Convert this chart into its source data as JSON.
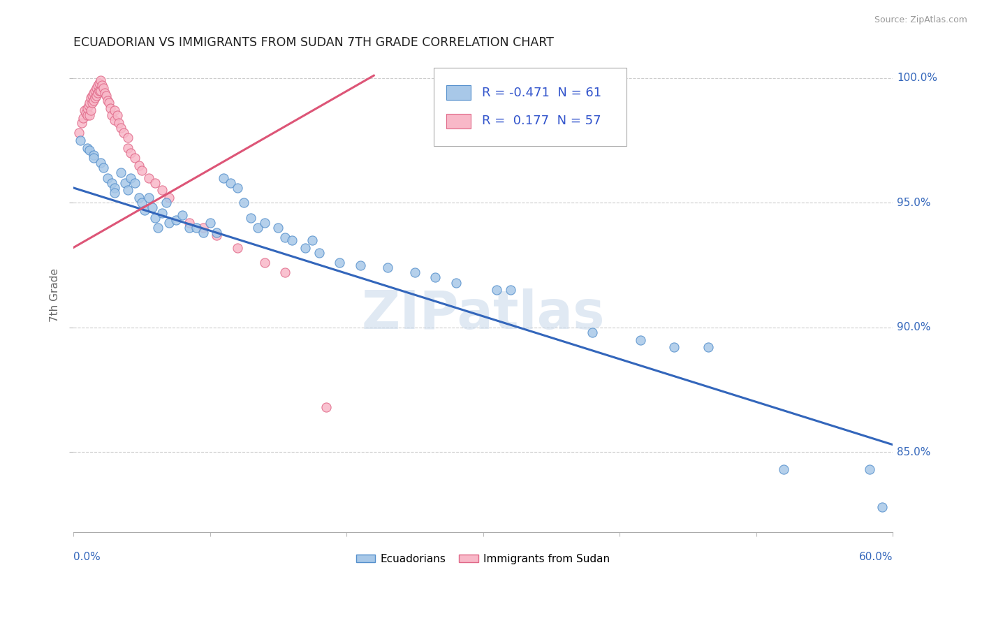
{
  "title": "ECUADORIAN VS IMMIGRANTS FROM SUDAN 7TH GRADE CORRELATION CHART",
  "source": "Source: ZipAtlas.com",
  "ylabel": "7th Grade",
  "xlim": [
    0.0,
    0.6
  ],
  "ylim": [
    0.818,
    1.008
  ],
  "xticks": [
    0.0,
    0.1,
    0.2,
    0.3,
    0.4,
    0.5,
    0.6
  ],
  "yticks": [
    0.85,
    0.9,
    0.95,
    1.0
  ],
  "yticklabels": [
    "85.0%",
    "90.0%",
    "95.0%",
    "100.0%"
  ],
  "blue_dot_color": "#a8c8e8",
  "blue_dot_edge": "#5590cc",
  "pink_dot_color": "#f8b8c8",
  "pink_dot_edge": "#e06888",
  "blue_line_color": "#3366bb",
  "pink_line_color": "#dd5577",
  "legend_R1": "-0.471",
  "legend_N1": "61",
  "legend_R2": "0.177",
  "legend_N2": "57",
  "legend_label1": "Ecuadorians",
  "legend_label2": "Immigrants from Sudan",
  "watermark": "ZIPatlas",
  "blue_line_x0": 0.0,
  "blue_line_y0": 0.956,
  "blue_line_x1": 0.6,
  "blue_line_y1": 0.853,
  "pink_line_x0": 0.0,
  "pink_line_x1": 0.22,
  "pink_line_y0": 0.932,
  "pink_line_y1": 1.001,
  "blue_x": [
    0.005,
    0.01,
    0.012,
    0.015,
    0.015,
    0.02,
    0.022,
    0.025,
    0.028,
    0.03,
    0.03,
    0.035,
    0.038,
    0.04,
    0.042,
    0.045,
    0.048,
    0.05,
    0.052,
    0.055,
    0.058,
    0.06,
    0.062,
    0.065,
    0.068,
    0.07,
    0.075,
    0.08,
    0.085,
    0.09,
    0.095,
    0.1,
    0.105,
    0.11,
    0.115,
    0.12,
    0.125,
    0.13,
    0.135,
    0.14,
    0.15,
    0.155,
    0.16,
    0.17,
    0.175,
    0.18,
    0.195,
    0.21,
    0.23,
    0.25,
    0.265,
    0.28,
    0.31,
    0.32,
    0.38,
    0.415,
    0.44,
    0.465,
    0.52,
    0.583,
    0.592
  ],
  "blue_y": [
    0.975,
    0.972,
    0.971,
    0.969,
    0.968,
    0.966,
    0.964,
    0.96,
    0.958,
    0.956,
    0.954,
    0.962,
    0.958,
    0.955,
    0.96,
    0.958,
    0.952,
    0.95,
    0.947,
    0.952,
    0.948,
    0.944,
    0.94,
    0.946,
    0.95,
    0.942,
    0.943,
    0.945,
    0.94,
    0.94,
    0.938,
    0.942,
    0.938,
    0.96,
    0.958,
    0.956,
    0.95,
    0.944,
    0.94,
    0.942,
    0.94,
    0.936,
    0.935,
    0.932,
    0.935,
    0.93,
    0.926,
    0.925,
    0.924,
    0.922,
    0.92,
    0.918,
    0.915,
    0.915,
    0.898,
    0.895,
    0.892,
    0.892,
    0.843,
    0.843,
    0.828
  ],
  "pink_x": [
    0.004,
    0.006,
    0.007,
    0.008,
    0.009,
    0.01,
    0.01,
    0.011,
    0.012,
    0.012,
    0.013,
    0.013,
    0.014,
    0.014,
    0.015,
    0.015,
    0.016,
    0.016,
    0.017,
    0.017,
    0.018,
    0.018,
    0.019,
    0.019,
    0.02,
    0.02,
    0.021,
    0.022,
    0.023,
    0.024,
    0.025,
    0.026,
    0.027,
    0.028,
    0.03,
    0.03,
    0.032,
    0.033,
    0.035,
    0.037,
    0.04,
    0.04,
    0.042,
    0.045,
    0.048,
    0.05,
    0.055,
    0.06,
    0.065,
    0.07,
    0.085,
    0.095,
    0.105,
    0.12,
    0.14,
    0.155,
    0.185
  ],
  "pink_y": [
    0.978,
    0.982,
    0.984,
    0.987,
    0.986,
    0.985,
    0.988,
    0.989,
    0.985,
    0.99,
    0.987,
    0.992,
    0.99,
    0.993,
    0.991,
    0.994,
    0.992,
    0.995,
    0.993,
    0.996,
    0.994,
    0.997,
    0.995,
    0.998,
    0.995,
    0.999,
    0.997,
    0.996,
    0.994,
    0.993,
    0.991,
    0.99,
    0.988,
    0.985,
    0.983,
    0.987,
    0.985,
    0.982,
    0.98,
    0.978,
    0.976,
    0.972,
    0.97,
    0.968,
    0.965,
    0.963,
    0.96,
    0.958,
    0.955,
    0.952,
    0.942,
    0.94,
    0.937,
    0.932,
    0.926,
    0.922,
    0.868
  ]
}
